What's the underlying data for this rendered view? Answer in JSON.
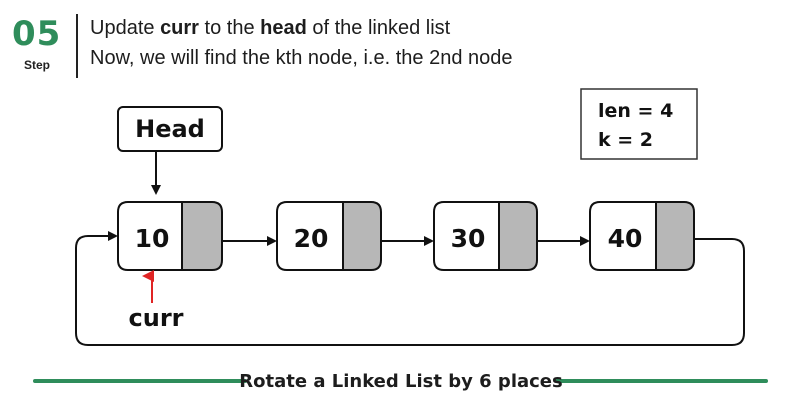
{
  "step": {
    "number": "05",
    "label": "Step"
  },
  "description": {
    "line1": [
      {
        "text": "Update ",
        "bold": false
      },
      {
        "text": "curr",
        "bold": true
      },
      {
        "text": " to the ",
        "bold": false
      },
      {
        "text": "head",
        "bold": true
      },
      {
        "text": " of the linked list",
        "bold": false
      }
    ],
    "line2": "Now, we will find the kth node, i.e. the 2nd node"
  },
  "head_label": "Head",
  "curr_label": "curr",
  "info_box": {
    "len": "len = 4",
    "k": "k = 2"
  },
  "nodes": [
    "10",
    "20",
    "30",
    "40"
  ],
  "caption": "Rotate a Linked List by 6 places",
  "colors": {
    "accent_green": "#2f8d5b",
    "pointer_box_fill": "#b7b7b7",
    "curr_arrow": "#e02424"
  }
}
